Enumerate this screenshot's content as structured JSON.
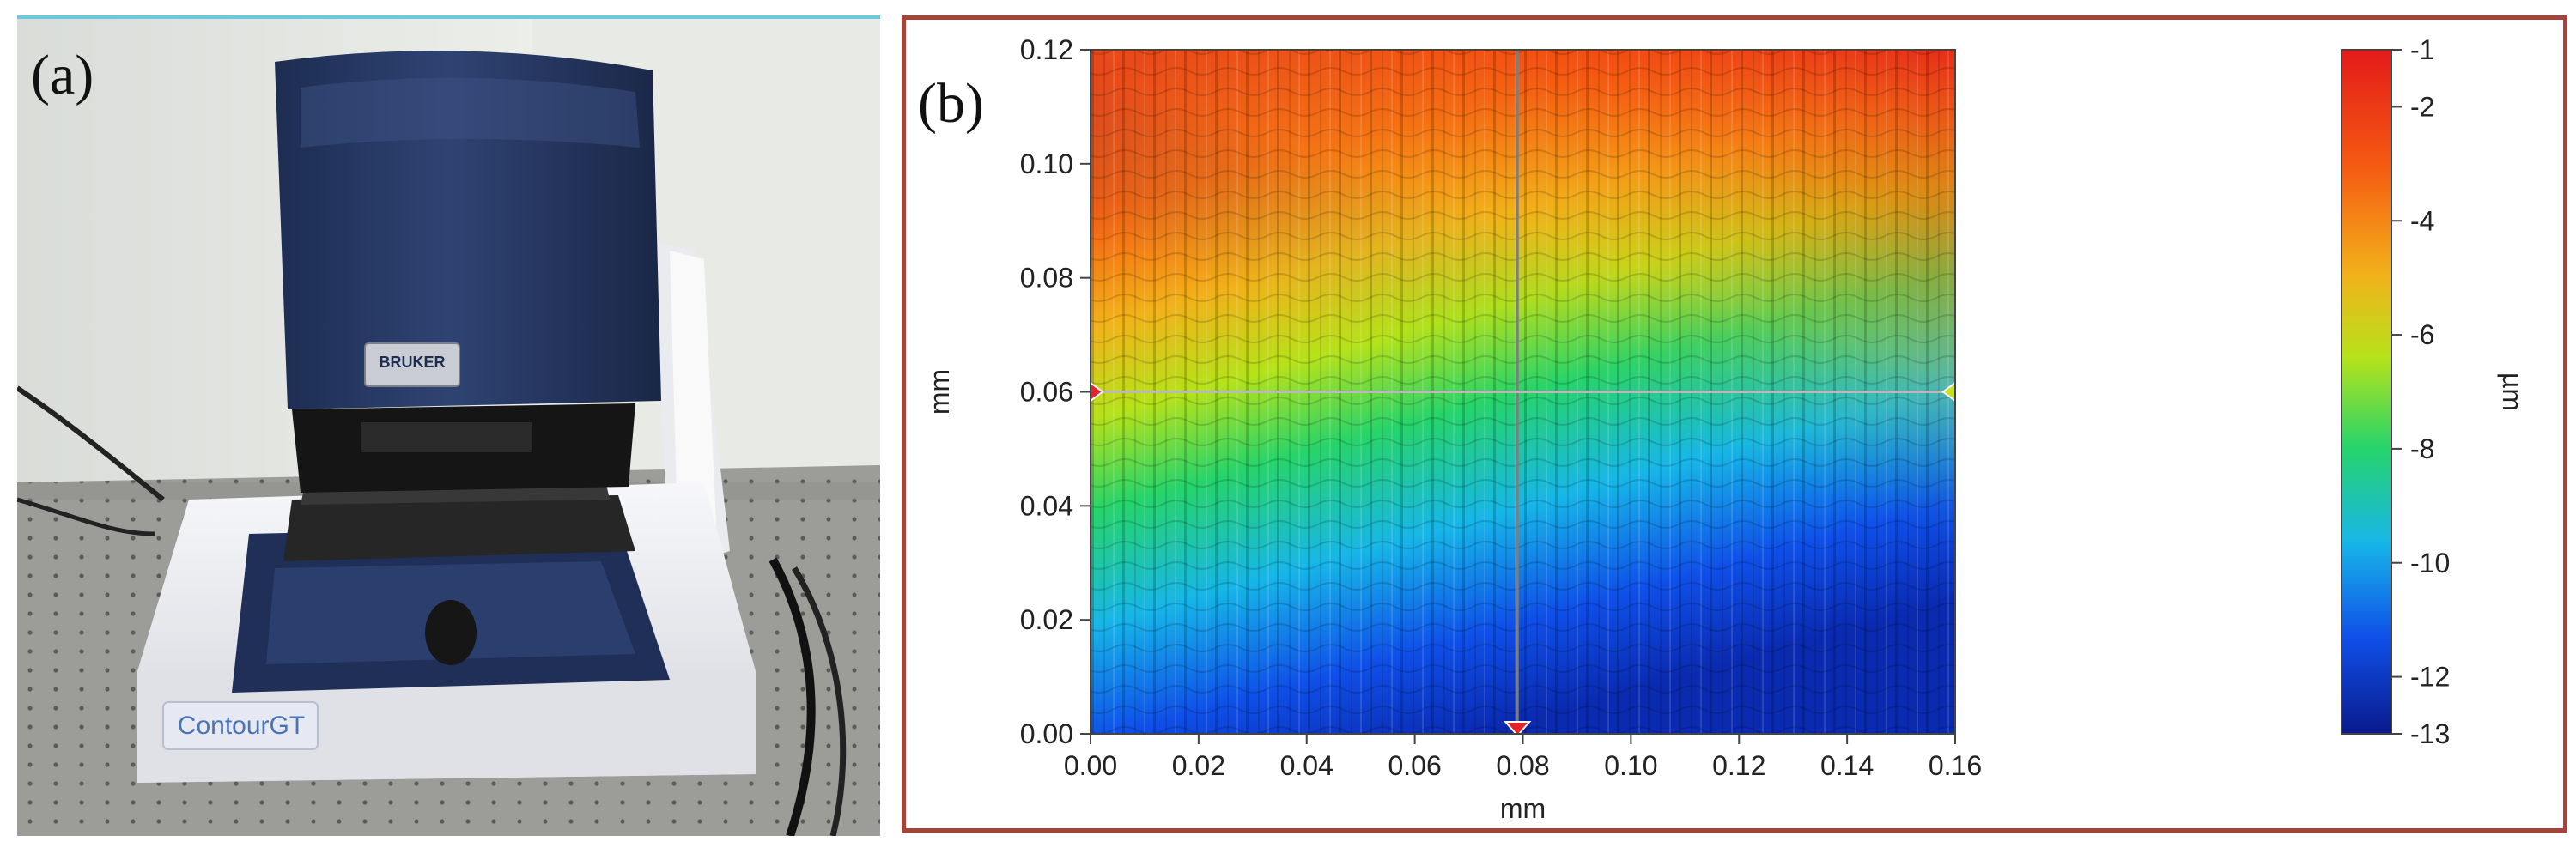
{
  "panel_a": {
    "label": "(a)",
    "brand_text": "BRUKER",
    "model_text": "ContourGT"
  },
  "panel_b": {
    "label": "(b)"
  },
  "chart_data": {
    "type": "heatmap",
    "title": "",
    "xlabel": "mm",
    "ylabel": "mm",
    "colorbar_label": "µm",
    "xlim": [
      0.0,
      0.16
    ],
    "ylim": [
      0.0,
      0.12
    ],
    "x_ticks": [
      0.0,
      0.02,
      0.04,
      0.06,
      0.08,
      0.1,
      0.12,
      0.14,
      0.16
    ],
    "y_ticks": [
      0.0,
      0.02,
      0.04,
      0.06,
      0.08,
      0.1,
      0.12
    ],
    "x_tick_labels": [
      "0.00",
      "0.02",
      "0.04",
      "0.06",
      "0.08",
      "0.10",
      "0.12",
      "0.14",
      "0.16"
    ],
    "y_tick_labels": [
      "0.00",
      "0.02",
      "0.04",
      "0.06",
      "0.08",
      "0.10",
      "0.12"
    ],
    "colorbar_range": [
      -13,
      -1
    ],
    "colorbar_ticks": [
      -1,
      -2,
      -4,
      -6,
      -8,
      -10,
      -12,
      -13
    ],
    "colorbar_tick_labels": [
      "-1",
      "-2",
      "-4",
      "-6",
      "-8",
      "-10",
      "-12",
      "-13"
    ],
    "colormap": [
      "#0a1a8c",
      "#0f4fe8",
      "#17b6e8",
      "#27d46a",
      "#b6e21a",
      "#f2b21a",
      "#f55a12",
      "#e31a1a"
    ],
    "cross_section": {
      "x": 0.079,
      "y": 0.06
    },
    "grid": false
  }
}
